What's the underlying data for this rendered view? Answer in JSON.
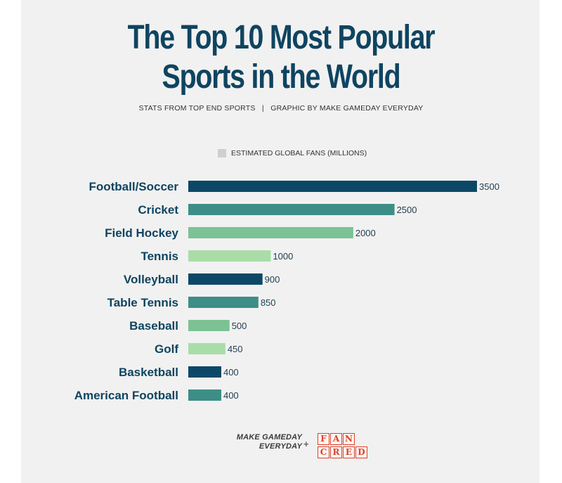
{
  "title_line1": "The Top 10 Most Popular",
  "title_line2": "Sports in the World",
  "subtitle": "STATS FROM TOP END SPORTS   |   GRAPHIC BY MAKE GAMEDAY EVERYDAY",
  "legend_label": "ESTIMATED GLOBAL FANS (MILLIONS)",
  "footer": {
    "brand_line1": "MAKE GAMEDAY",
    "brand_line2": "EVERYDAY",
    "plus": "+",
    "partner_letters": [
      "F",
      "A",
      "N",
      "",
      "C",
      "R",
      "E",
      "D"
    ]
  },
  "colors": {
    "title": "#0f4460",
    "legend_swatch": "#cfcfcf",
    "bar_palette": [
      "#0c4866",
      "#3d8e87",
      "#7cc294",
      "#a9dda8"
    ]
  },
  "chart_data": {
    "type": "bar",
    "orientation": "horizontal",
    "categories": [
      "Football/Soccer",
      "Cricket",
      "Field Hockey",
      "Tennis",
      "Volleyball",
      "Table Tennis",
      "Baseball",
      "Golf",
      "Basketball",
      "American Football"
    ],
    "values": [
      3500,
      2500,
      2000,
      1000,
      900,
      850,
      500,
      450,
      400,
      400
    ],
    "series_name": "ESTIMATED GLOBAL FANS (MILLIONS)",
    "xlim": [
      0,
      3500
    ],
    "grid": false,
    "legend": "top"
  }
}
